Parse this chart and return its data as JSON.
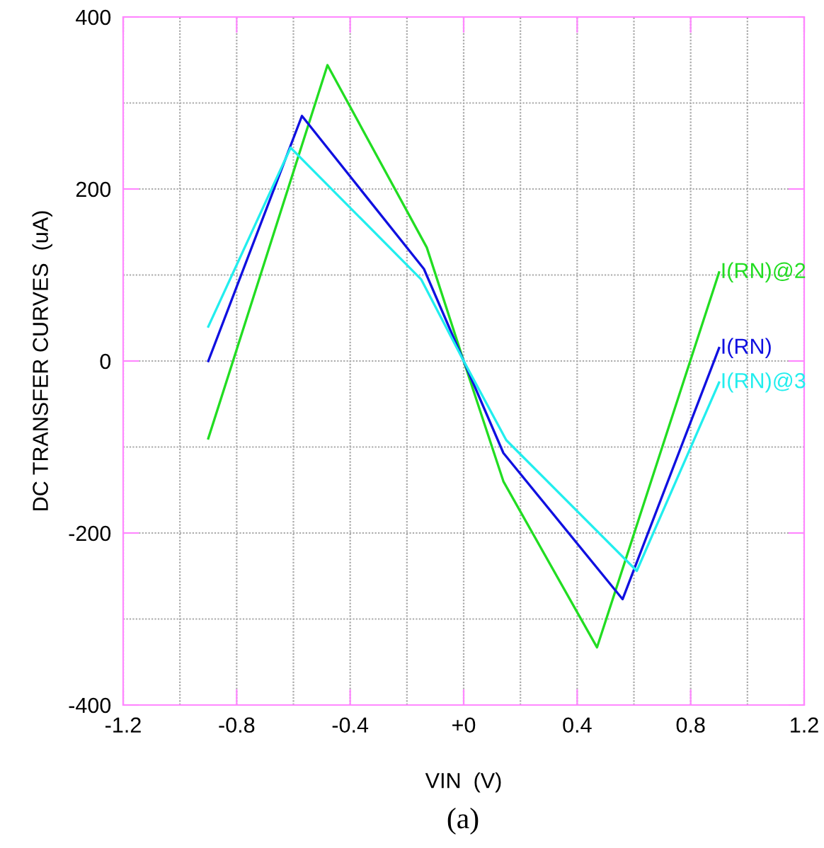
{
  "chart_data": {
    "type": "line",
    "xlabel": "VIN  (V)",
    "ylabel": "DC TRANSFER CURVES  (uA)",
    "xlim": [
      -1.2,
      1.2
    ],
    "ylim": [
      -400,
      400
    ],
    "xticks": [
      -1.2,
      -0.8,
      -0.4,
      {
        "value": 0,
        "label": "+0"
      },
      0.4,
      0.8,
      1.2
    ],
    "yticks": [
      -400,
      -200,
      0,
      200,
      400
    ],
    "grid": true,
    "marker": "none",
    "line_style": "solid",
    "legend": false,
    "annotations": [
      "(a)"
    ],
    "series": [
      {
        "name": "I(RN)@2",
        "color": "#22dd22",
        "x": [
          -0.9,
          -0.48,
          -0.13,
          0,
          0.14,
          0.47,
          0.9
        ],
        "values": [
          -90,
          344,
          132,
          0,
          -140,
          -333,
          103
        ]
      },
      {
        "name": "I(RN)",
        "color": "#1010e0",
        "x": [
          -0.9,
          -0.57,
          -0.14,
          0,
          0.14,
          0.56,
          0.9
        ],
        "values": [
          0,
          285,
          107,
          0,
          -107,
          -277,
          15
        ]
      },
      {
        "name": "I(RN)@3",
        "color": "#22eeee",
        "x": [
          -0.9,
          -0.61,
          -0.15,
          0,
          0.15,
          0.61,
          0.9
        ],
        "values": [
          40,
          248,
          95,
          0,
          -92,
          -244,
          -25
        ]
      }
    ]
  }
}
